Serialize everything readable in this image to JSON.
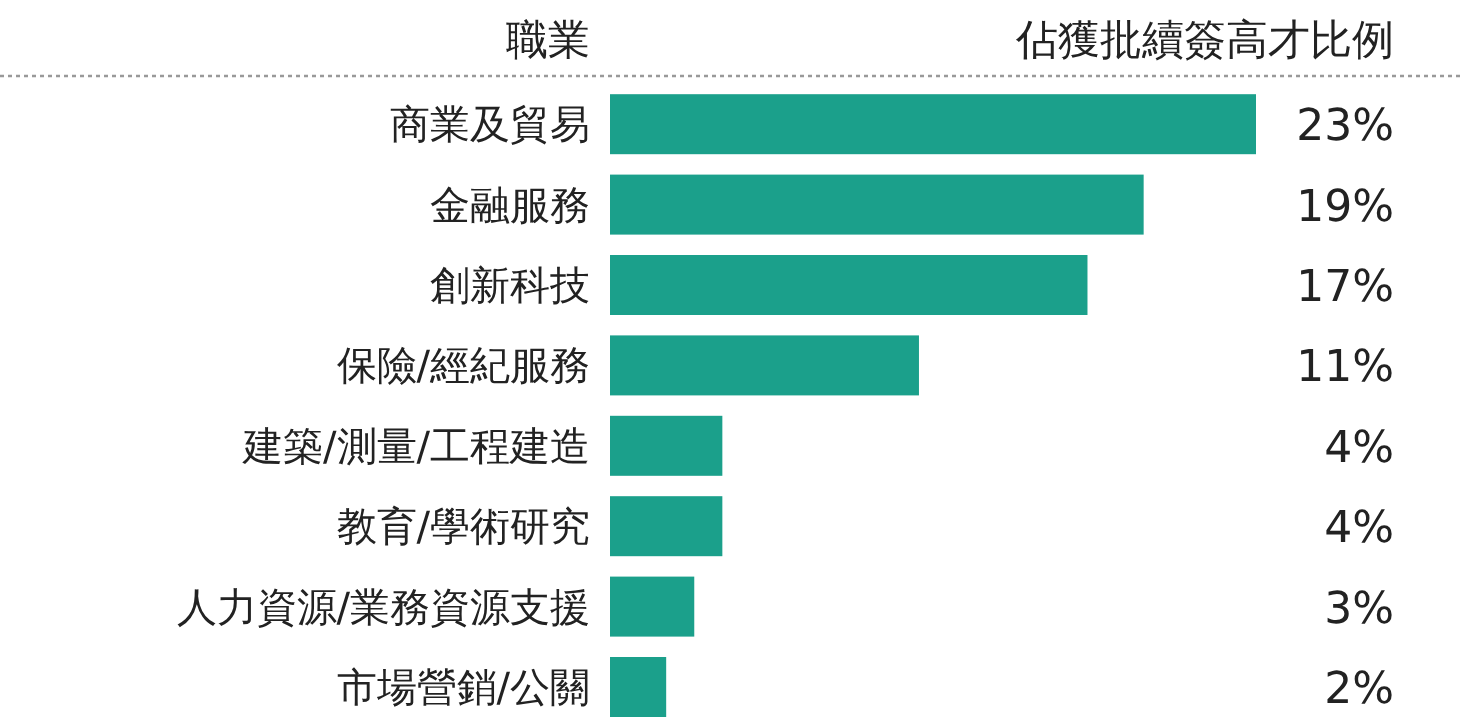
{
  "chart_data": {
    "type": "bar",
    "orientation": "horizontal",
    "ylabel": "職業",
    "xlabel": "佔獲批續簽高才比例",
    "categories": [
      "商業及貿易",
      "金融服務",
      "創新科技",
      "保險/經紀服務",
      "建築/測量/工程建造",
      "教育/學術研究",
      "人力資源/業務資源支援",
      "市場營銷/公關"
    ],
    "values": [
      23,
      19,
      17,
      11,
      4,
      4,
      3,
      2
    ],
    "value_labels": [
      "23%",
      "19%",
      "17%",
      "11%",
      "4%",
      "4%",
      "3%",
      "2%"
    ],
    "color": "#1ba08b"
  }
}
